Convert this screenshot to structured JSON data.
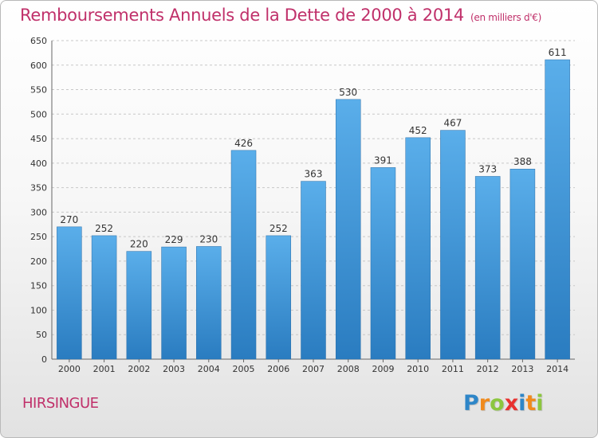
{
  "chart_data": {
    "type": "bar",
    "title": "Remboursements Annuels de la Dette de 2000 à 2014",
    "subtitle": "(en milliers d'€)",
    "categories": [
      "2000",
      "2001",
      "2002",
      "2003",
      "2004",
      "2005",
      "2006",
      "2007",
      "2008",
      "2009",
      "2010",
      "2011",
      "2012",
      "2013",
      "2014"
    ],
    "values": [
      270,
      252,
      220,
      229,
      230,
      426,
      252,
      363,
      530,
      391,
      452,
      467,
      373,
      388,
      611
    ],
    "ylim": [
      0,
      650
    ],
    "yticks": [
      0,
      50,
      100,
      150,
      200,
      250,
      300,
      350,
      400,
      450,
      500,
      550,
      600,
      650
    ],
    "grid": true,
    "colors": {
      "bar_top": "#5aaeea",
      "bar_bottom": "#2a7cc0",
      "grid": "#c8c8c8",
      "title": "#c0306a"
    }
  },
  "footer": {
    "town": "HIRSINGUE",
    "logo": {
      "text": "Proxiti",
      "letters": [
        {
          "ch": "P",
          "color": "#2e86c8"
        },
        {
          "ch": "r",
          "color": "#f08a1c"
        },
        {
          "ch": "o",
          "color": "#8cc63f"
        },
        {
          "ch": "x",
          "color": "#e8312f"
        },
        {
          "ch": "i",
          "color": "#2e86c8"
        },
        {
          "ch": "t",
          "color": "#f08a1c"
        },
        {
          "ch": "i",
          "color": "#8cc63f"
        }
      ]
    }
  }
}
